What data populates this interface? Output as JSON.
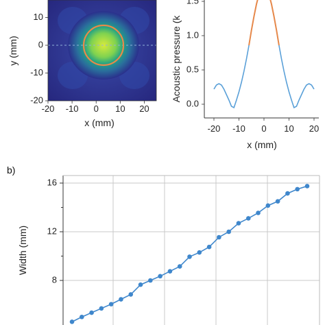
{
  "chart_data": [
    {
      "type": "heatmap",
      "panel": "",
      "xlabel": "x (mm)",
      "ylabel": "y (mm)",
      "xlim": [
        -20,
        25
      ],
      "ylim": [
        -20,
        20
      ],
      "xticks": [
        -20,
        -10,
        0,
        10,
        20
      ],
      "yticks": [
        10,
        0,
        -10,
        -20
      ],
      "overlay_circle_radius_mm": 7,
      "dashed_line_y": 0,
      "colors": {
        "low": "#2a2f8c",
        "mid": "#1f9a8a",
        "high": "#d7e83a",
        "circle": "#e8894a"
      }
    },
    {
      "type": "line",
      "panel": "",
      "xlabel": "x (mm)",
      "ylabel": "Acoustic pressure (k",
      "xlim": [
        -20,
        20
      ],
      "ylim": [
        0,
        1.5
      ],
      "xticks": [
        -20,
        -10,
        0,
        10,
        20
      ],
      "yticks": [
        0.0,
        0.5,
        1.0,
        1.5
      ],
      "series": [
        {
          "x": [
            -20,
            -19,
            -18,
            -17,
            -16,
            -15,
            -14,
            -13,
            -12,
            -11,
            -10,
            -9,
            -8,
            -7,
            -6,
            -5,
            -4,
            -3,
            -2,
            -1,
            0,
            1,
            2,
            3,
            4,
            5,
            6,
            7,
            8,
            9,
            10,
            11,
            12,
            13,
            14,
            15,
            16,
            17,
            18,
            19,
            20
          ],
          "values": [
            0.22,
            0.28,
            0.3,
            0.28,
            0.22,
            0.14,
            0.06,
            -0.03,
            -0.05,
            0.06,
            0.18,
            0.32,
            0.48,
            0.66,
            0.86,
            1.08,
            1.28,
            1.46,
            1.6,
            1.7,
            1.72,
            1.7,
            1.6,
            1.46,
            1.28,
            1.08,
            0.86,
            0.66,
            0.48,
            0.32,
            0.18,
            0.06,
            -0.05,
            -0.03,
            0.06,
            0.14,
            0.22,
            0.28,
            0.3,
            0.28,
            0.22
          ],
          "color": "#5aa0d8"
        }
      ],
      "highlight": {
        "x_range": [
          -6,
          6
        ],
        "color": "#e8894a"
      }
    },
    {
      "type": "line",
      "panel": "b)",
      "xlabel": "",
      "ylabel": "Width (mm)",
      "ylim": [
        4.3,
        16.5
      ],
      "yticks": [
        8,
        12,
        16
      ],
      "series": [
        {
          "x": [
            1,
            2,
            3,
            4,
            5,
            6,
            7,
            8,
            9,
            10,
            11,
            12,
            13,
            14,
            15,
            16,
            17,
            18,
            19,
            20,
            21,
            22,
            23,
            24,
            25
          ],
          "values": [
            4.6,
            5.0,
            5.35,
            5.7,
            6.05,
            6.45,
            6.85,
            7.65,
            8.0,
            8.35,
            8.75,
            9.15,
            9.95,
            10.3,
            10.75,
            11.55,
            12.0,
            12.7,
            13.1,
            13.55,
            14.15,
            14.5,
            15.15,
            15.5,
            15.75
          ],
          "color": "#3f87cc"
        }
      ],
      "grid": true
    }
  ]
}
